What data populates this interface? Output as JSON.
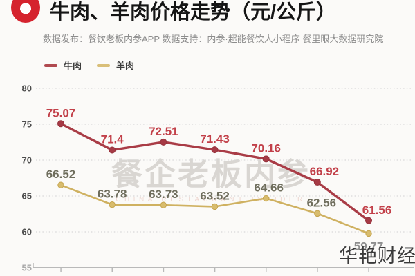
{
  "header": {
    "title": "牛肉、羊肉价格走势（元/公斤）",
    "subtitle": "数据发布：餐饮老板内参APP  数据支持：内参·超能餐饮人小程序  餐里眼大数据研究院"
  },
  "legend": {
    "items": [
      {
        "label": "牛肉",
        "color": "#b04a50"
      },
      {
        "label": "羊肉",
        "color": "#d9bf79"
      }
    ]
  },
  "watermark": {
    "main": "餐企老板内参",
    "sub": "CHINA RESTAURANT INSIDER"
  },
  "overlay": {
    "brand": "华艳财经"
  },
  "chart_data": {
    "type": "line",
    "title": "牛肉、羊肉价格走势（元/公斤）",
    "x_tick_labels_visible": false,
    "point_count": 7,
    "series": [
      {
        "name": "牛肉",
        "values": [
          75.07,
          71.4,
          72.51,
          71.43,
          70.16,
          66.92,
          61.56
        ],
        "line_color": "#a93c46",
        "point_color": "#a63a45",
        "label_color": "#c24049",
        "label_offsets": [
          [
            0,
            -10
          ],
          [
            0,
            -10
          ],
          [
            0,
            -10
          ],
          [
            0,
            -10
          ],
          [
            0,
            -10
          ],
          [
            10,
            -10
          ],
          [
            12,
            -10
          ]
        ]
      },
      {
        "name": "羊肉",
        "values": [
          66.52,
          63.78,
          63.73,
          63.52,
          64.66,
          62.56,
          59.77
        ],
        "line_color": "#cfb161",
        "point_color": "#d8bc6d",
        "label_color": "#6e6d5c",
        "label_offsets": [
          [
            0,
            -10
          ],
          [
            0,
            -10
          ],
          [
            0,
            -10
          ],
          [
            0,
            -10
          ],
          [
            4,
            -10
          ],
          [
            6,
            -10
          ],
          [
            0,
            24
          ]
        ],
        "muted_label_indices": [
          6
        ],
        "muted_label_color": "#8e8e8e"
      }
    ],
    "ylim": [
      55,
      80
    ],
    "yticks": [
      55,
      60,
      65,
      70,
      75,
      80
    ],
    "grid": "horizontal-dotted",
    "grid_color": "#d8d8d8",
    "axis_color": "#b9b9b9",
    "ytick_color": "#4c4c4c",
    "ytick_muted_color": "#ababab",
    "legend_position": "top-left"
  }
}
